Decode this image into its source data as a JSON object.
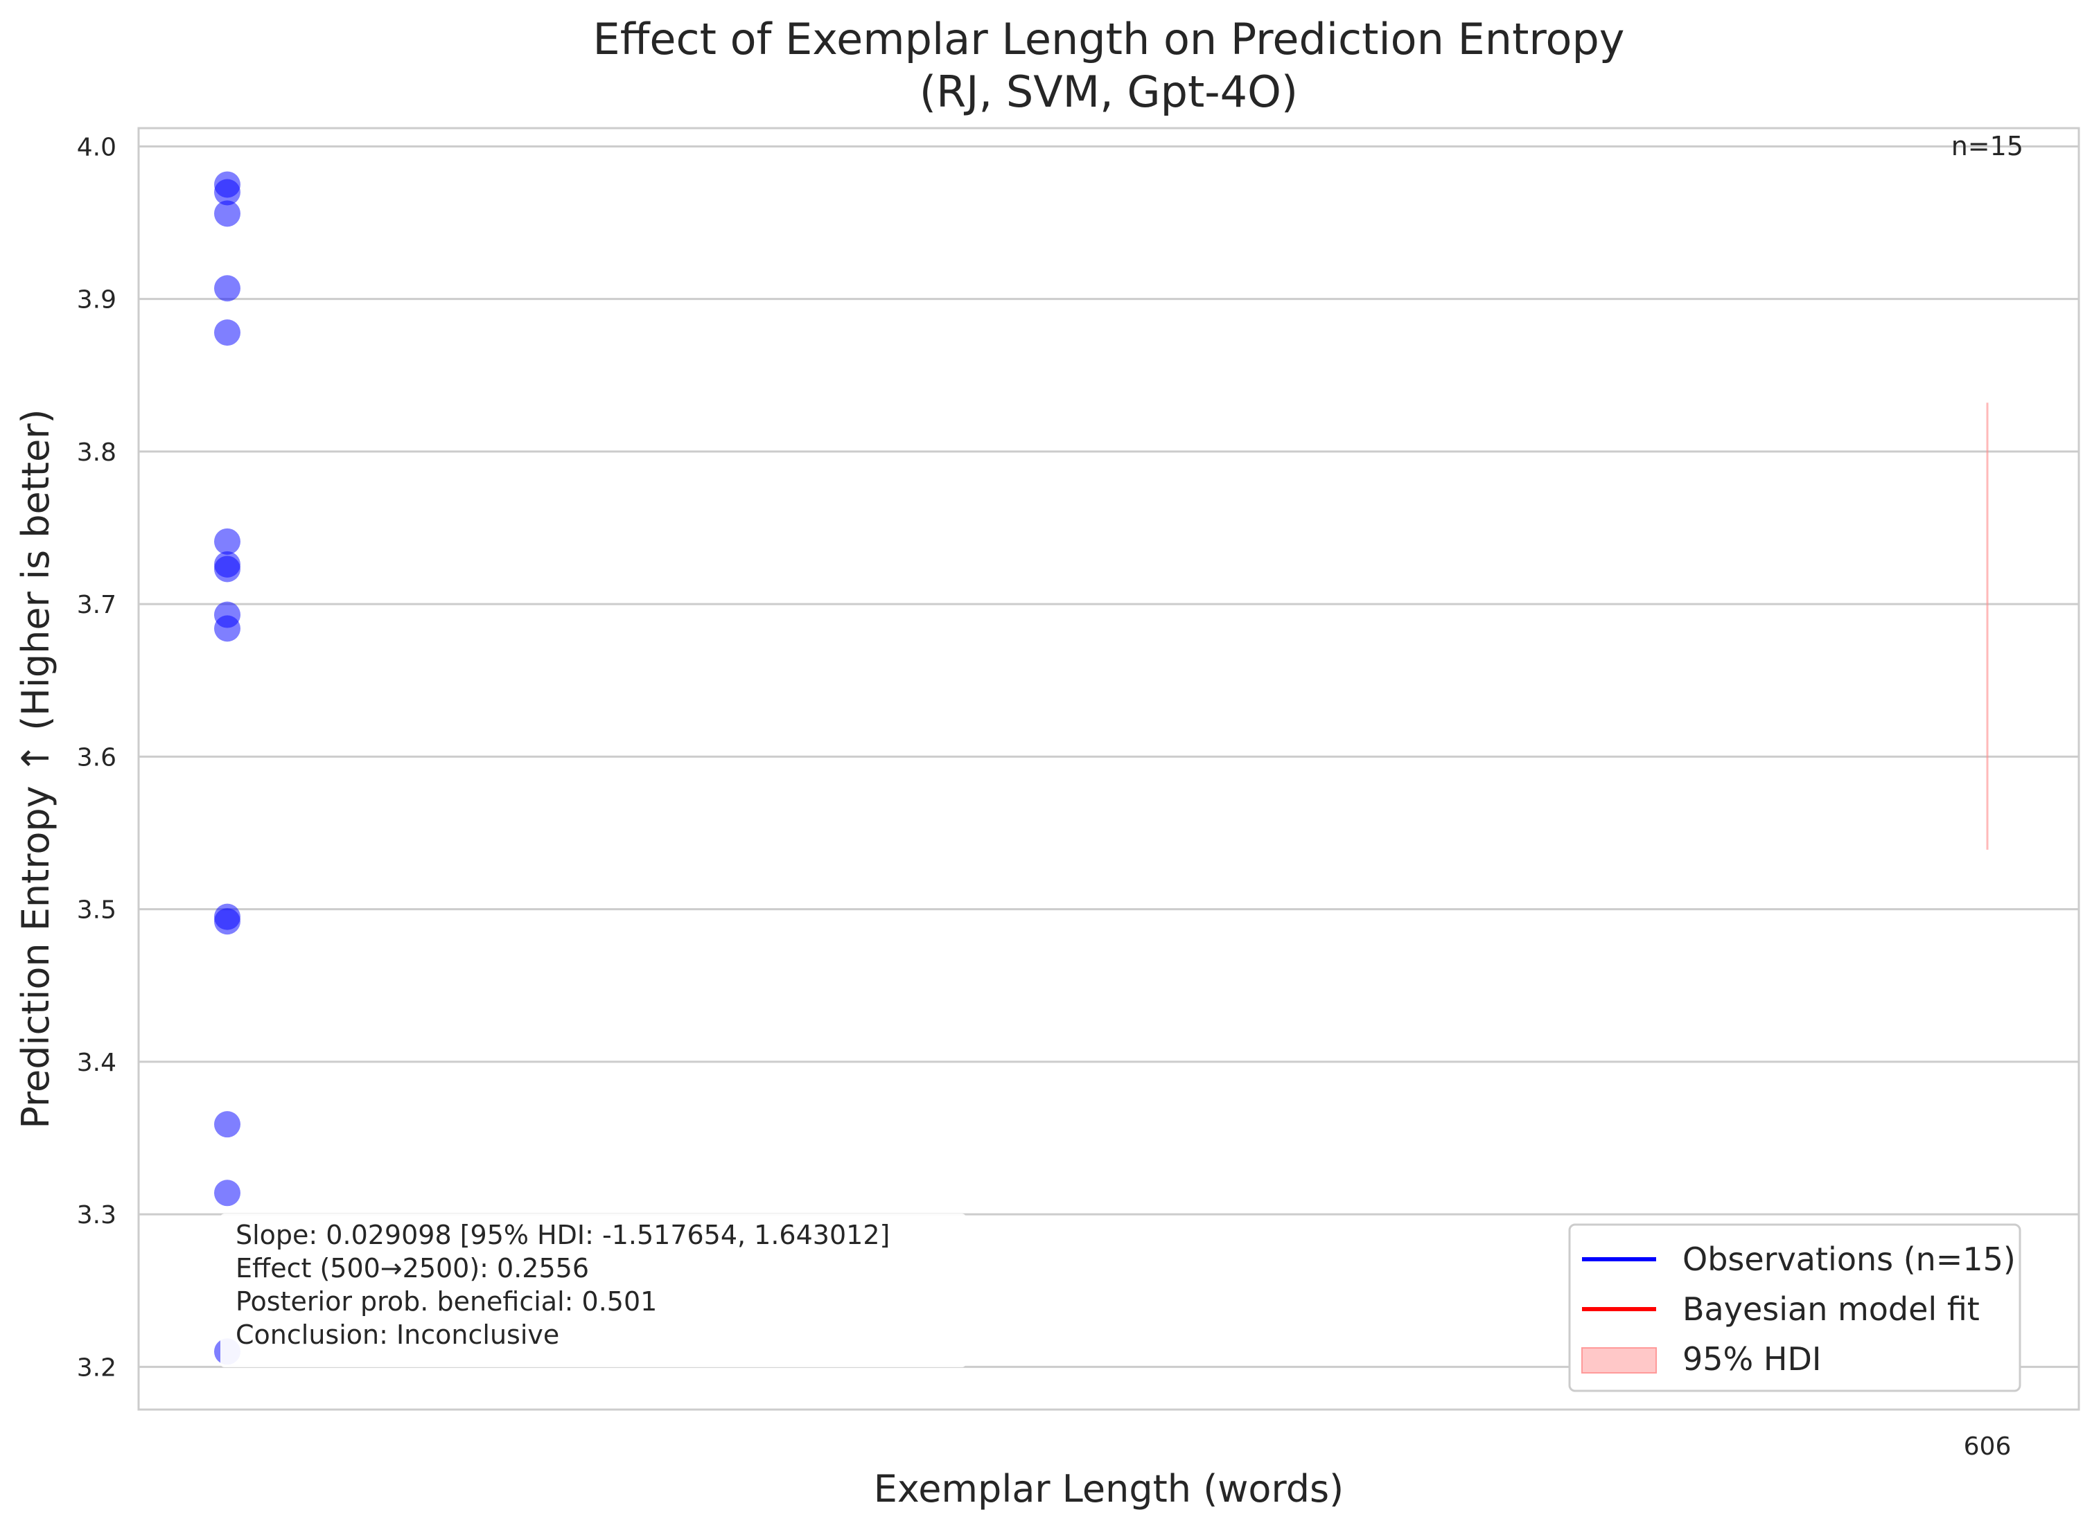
{
  "chart_data": {
    "type": "scatter",
    "title_line1": "Effect of Exemplar Length on Prediction Entropy",
    "title_line2": "(RJ, SVM, Gpt-4O)",
    "xlabel": "Exemplar Length (words)",
    "ylabel": "Prediction Entropy ↑ (Higher is better)",
    "ylim": [
      3.172,
      4.012
    ],
    "yticks": [
      "3.2",
      "3.3",
      "3.4",
      "3.5",
      "3.6",
      "3.7",
      "3.8",
      "3.9",
      "4.0"
    ],
    "xtick_label": "606",
    "grid": true,
    "n_label": "n=15",
    "series": [
      {
        "name": "Observations (n=15)",
        "color": "#0000ff",
        "y": [
          3.975,
          3.97,
          3.956,
          3.907,
          3.878,
          3.741,
          3.726,
          3.723,
          3.693,
          3.684,
          3.495,
          3.492,
          3.359,
          3.314,
          3.21
        ]
      }
    ],
    "hdi_band": {
      "x": 606,
      "y_low": 3.539,
      "y_high": 3.832,
      "color": "#ff8c8c"
    },
    "annotation": {
      "line1": "Slope: 0.029098 [95% HDI: -1.517654, 1.643012]",
      "line2": "Effect (500→2500): 0.2556",
      "line3": "Posterior prob. beneficial: 0.501",
      "line4": "Conclusion: Inconclusive"
    },
    "legend": {
      "placement": "lower-right",
      "items": [
        {
          "label": "Observations (n=15)",
          "color": "#0000ff",
          "kind": "line"
        },
        {
          "label": "Bayesian model fit",
          "color": "#ff0000",
          "kind": "line"
        },
        {
          "label": "95% HDI",
          "color": "#ffc8c8",
          "kind": "patch"
        }
      ]
    }
  }
}
